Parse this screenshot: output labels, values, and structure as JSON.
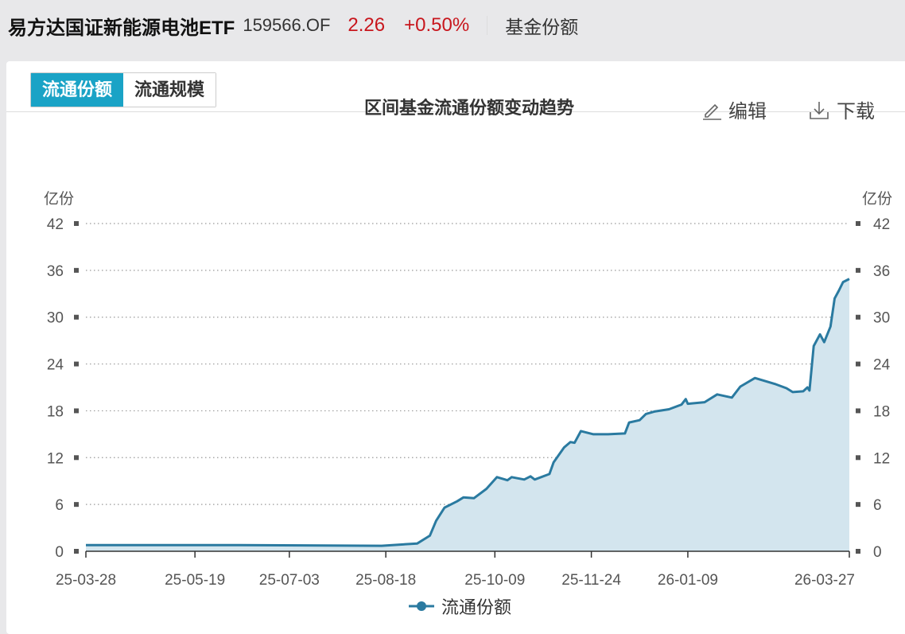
{
  "header": {
    "fund_name": "易方达国证新能源电池ETF",
    "code": "159566.OF",
    "price": "2.26",
    "change": "+0.50%",
    "section": "基金份额"
  },
  "tabs": [
    {
      "label": "流通份额",
      "active": true
    },
    {
      "label": "流通规模",
      "active": false
    }
  ],
  "toolbar": {
    "edit_label": "编辑",
    "download_label": "下载"
  },
  "colors": {
    "accent": "#1aa3c6",
    "line": "#2a7aa0",
    "area": "#d3e5ee",
    "up": "#c8161d"
  },
  "chart_data": {
    "type": "area",
    "title": "区间基金流通份额变动趋势",
    "ylabel_left": "亿份",
    "ylabel_right": "亿份",
    "ylim": [
      0,
      42
    ],
    "yticks": [
      0,
      6,
      12,
      18,
      24,
      30,
      36,
      42
    ],
    "xlim": [
      "2025-03-28",
      "2026-03-27"
    ],
    "xticks": [
      "25-03-28",
      "25-05-19",
      "25-07-03",
      "25-08-18",
      "25-10-09",
      "25-11-24",
      "26-01-09",
      "26-03-27"
    ],
    "grid": true,
    "legend": "bottom",
    "series": [
      {
        "name": "流通份额",
        "points": [
          [
            "2025-03-28",
            0.8
          ],
          [
            "2025-06-09",
            0.8
          ],
          [
            "2025-08-16",
            0.7
          ],
          [
            "2025-09-02",
            1.0
          ],
          [
            "2025-09-08",
            2.0
          ],
          [
            "2025-09-11",
            3.9
          ],
          [
            "2025-09-15",
            5.6
          ],
          [
            "2025-09-21",
            6.4
          ],
          [
            "2025-09-24",
            6.9
          ],
          [
            "2025-09-29",
            6.8
          ],
          [
            "2025-10-05",
            8.0
          ],
          [
            "2025-10-10",
            9.5
          ],
          [
            "2025-10-15",
            9.1
          ],
          [
            "2025-10-17",
            9.5
          ],
          [
            "2025-10-23",
            9.2
          ],
          [
            "2025-10-26",
            9.6
          ],
          [
            "2025-10-28",
            9.2
          ],
          [
            "2025-11-04",
            9.9
          ],
          [
            "2025-11-06",
            11.4
          ],
          [
            "2025-11-11",
            13.3
          ],
          [
            "2025-11-14",
            14.0
          ],
          [
            "2025-11-16",
            13.9
          ],
          [
            "2025-11-19",
            15.4
          ],
          [
            "2025-11-25",
            15.0
          ],
          [
            "2025-12-02",
            15.0
          ],
          [
            "2025-12-10",
            15.1
          ],
          [
            "2025-12-12",
            16.5
          ],
          [
            "2025-12-17",
            16.8
          ],
          [
            "2025-12-20",
            17.6
          ],
          [
            "2025-12-24",
            17.9
          ],
          [
            "2025-12-31",
            18.2
          ],
          [
            "2026-01-06",
            18.8
          ],
          [
            "2026-01-08",
            19.5
          ],
          [
            "2026-01-09",
            18.9
          ],
          [
            "2026-01-17",
            19.1
          ],
          [
            "2026-01-23",
            20.1
          ],
          [
            "2026-01-30",
            19.7
          ],
          [
            "2026-02-03",
            21.1
          ],
          [
            "2026-02-10",
            22.2
          ],
          [
            "2026-02-20",
            21.4
          ],
          [
            "2026-02-25",
            20.9
          ],
          [
            "2026-02-28",
            20.4
          ],
          [
            "2026-03-05",
            20.5
          ],
          [
            "2026-03-07",
            21.0
          ],
          [
            "2026-03-08",
            20.6
          ],
          [
            "2026-03-10",
            26.3
          ],
          [
            "2026-03-13",
            27.8
          ],
          [
            "2026-03-15",
            26.8
          ],
          [
            "2026-03-18",
            28.8
          ],
          [
            "2026-03-20",
            32.4
          ],
          [
            "2026-03-22",
            33.4
          ],
          [
            "2026-03-24",
            34.5
          ],
          [
            "2026-03-27",
            34.9
          ]
        ]
      }
    ]
  }
}
